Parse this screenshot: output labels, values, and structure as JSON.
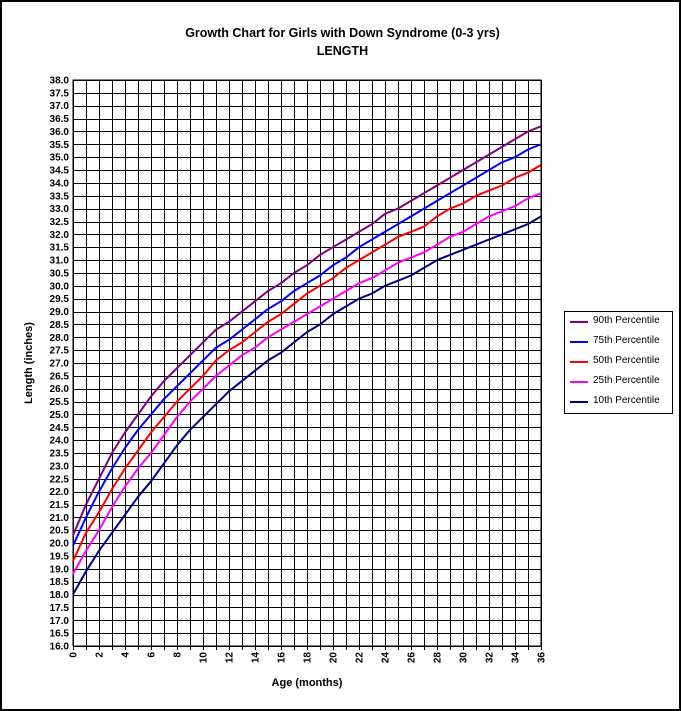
{
  "chart_data": {
    "type": "line",
    "title": "Growth Chart for Girls with Down Syndrome (0-3 yrs)",
    "subtitle": "LENGTH",
    "xlabel": "Age (months)",
    "ylabel": "Length (inches)",
    "xlim": [
      0,
      36
    ],
    "ylim": [
      16.0,
      38.0
    ],
    "x_ticks": [
      "0",
      "2",
      "4",
      "6",
      "8",
      "10",
      "12",
      "14",
      "16",
      "18",
      "20",
      "22",
      "24",
      "26",
      "28",
      "30",
      "32",
      "34",
      "36"
    ],
    "y_ticks": [
      "16.0",
      "16.5",
      "17.0",
      "17.5",
      "18.0",
      "18.5",
      "19.0",
      "19.5",
      "20.0",
      "20.5",
      "21.0",
      "21.5",
      "22.0",
      "22.5",
      "23.0",
      "23.5",
      "24.0",
      "24.5",
      "25.0",
      "25.5",
      "26.0",
      "26.5",
      "27.0",
      "27.5",
      "28.0",
      "28.5",
      "29.0",
      "29.5",
      "30.0",
      "30.5",
      "31.0",
      "31.5",
      "32.0",
      "32.5",
      "33.0",
      "33.5",
      "34.0",
      "34.5",
      "35.0",
      "35.5",
      "36.0",
      "36.5",
      "37.0",
      "37.5",
      "38.0"
    ],
    "grid": true,
    "legend_position": "right",
    "x": [
      0,
      1,
      2,
      3,
      4,
      5,
      6,
      7,
      8,
      9,
      10,
      11,
      12,
      13,
      14,
      15,
      16,
      17,
      18,
      19,
      20,
      21,
      22,
      23,
      24,
      25,
      26,
      27,
      28,
      29,
      30,
      31,
      32,
      33,
      34,
      35,
      36
    ],
    "series": [
      {
        "name": "90th Percentile",
        "color": "#800080",
        "values": [
          20.3,
          21.5,
          22.5,
          23.5,
          24.3,
          25.0,
          25.7,
          26.3,
          26.8,
          27.3,
          27.8,
          28.3,
          28.6,
          29.0,
          29.4,
          29.8,
          30.1,
          30.5,
          30.8,
          31.2,
          31.5,
          31.8,
          32.1,
          32.4,
          32.8,
          33.0,
          33.3,
          33.6,
          33.9,
          34.2,
          34.5,
          34.8,
          35.1,
          35.4,
          35.7,
          36.0,
          36.2
        ]
      },
      {
        "name": "75th Percentile",
        "color": "#0000ff",
        "values": [
          19.9,
          21.0,
          22.0,
          22.9,
          23.7,
          24.4,
          25.0,
          25.6,
          26.1,
          26.6,
          27.1,
          27.6,
          27.9,
          28.3,
          28.7,
          29.1,
          29.4,
          29.8,
          30.1,
          30.4,
          30.8,
          31.1,
          31.5,
          31.8,
          32.1,
          32.4,
          32.7,
          33.0,
          33.3,
          33.6,
          33.9,
          34.2,
          34.5,
          34.8,
          35.0,
          35.3,
          35.5
        ]
      },
      {
        "name": "50th Percentile",
        "color": "#ff0000",
        "values": [
          19.3,
          20.4,
          21.2,
          22.1,
          22.9,
          23.6,
          24.3,
          24.9,
          25.5,
          26.0,
          26.5,
          27.1,
          27.5,
          27.8,
          28.2,
          28.6,
          28.9,
          29.3,
          29.7,
          30.0,
          30.3,
          30.7,
          31.0,
          31.3,
          31.6,
          31.9,
          32.1,
          32.3,
          32.7,
          33.0,
          33.2,
          33.5,
          33.7,
          33.9,
          34.2,
          34.4,
          34.7
        ]
      },
      {
        "name": "25th Percentile",
        "color": "#ff00ff",
        "values": [
          18.8,
          19.7,
          20.5,
          21.4,
          22.2,
          22.9,
          23.5,
          24.2,
          24.9,
          25.5,
          26.0,
          26.5,
          26.9,
          27.3,
          27.6,
          28.0,
          28.3,
          28.6,
          28.9,
          29.2,
          29.5,
          29.8,
          30.1,
          30.3,
          30.6,
          30.9,
          31.1,
          31.3,
          31.6,
          31.9,
          32.1,
          32.4,
          32.7,
          32.9,
          33.1,
          33.4,
          33.6
        ]
      },
      {
        "name": "10th Percentile",
        "color": "#000080",
        "values": [
          18.0,
          18.9,
          19.7,
          20.4,
          21.1,
          21.8,
          22.4,
          23.1,
          23.8,
          24.4,
          24.9,
          25.4,
          25.9,
          26.3,
          26.7,
          27.1,
          27.4,
          27.8,
          28.2,
          28.5,
          28.9,
          29.2,
          29.5,
          29.7,
          30.0,
          30.2,
          30.4,
          30.7,
          31.0,
          31.2,
          31.4,
          31.6,
          31.8,
          32.0,
          32.2,
          32.4,
          32.7
        ]
      }
    ]
  }
}
